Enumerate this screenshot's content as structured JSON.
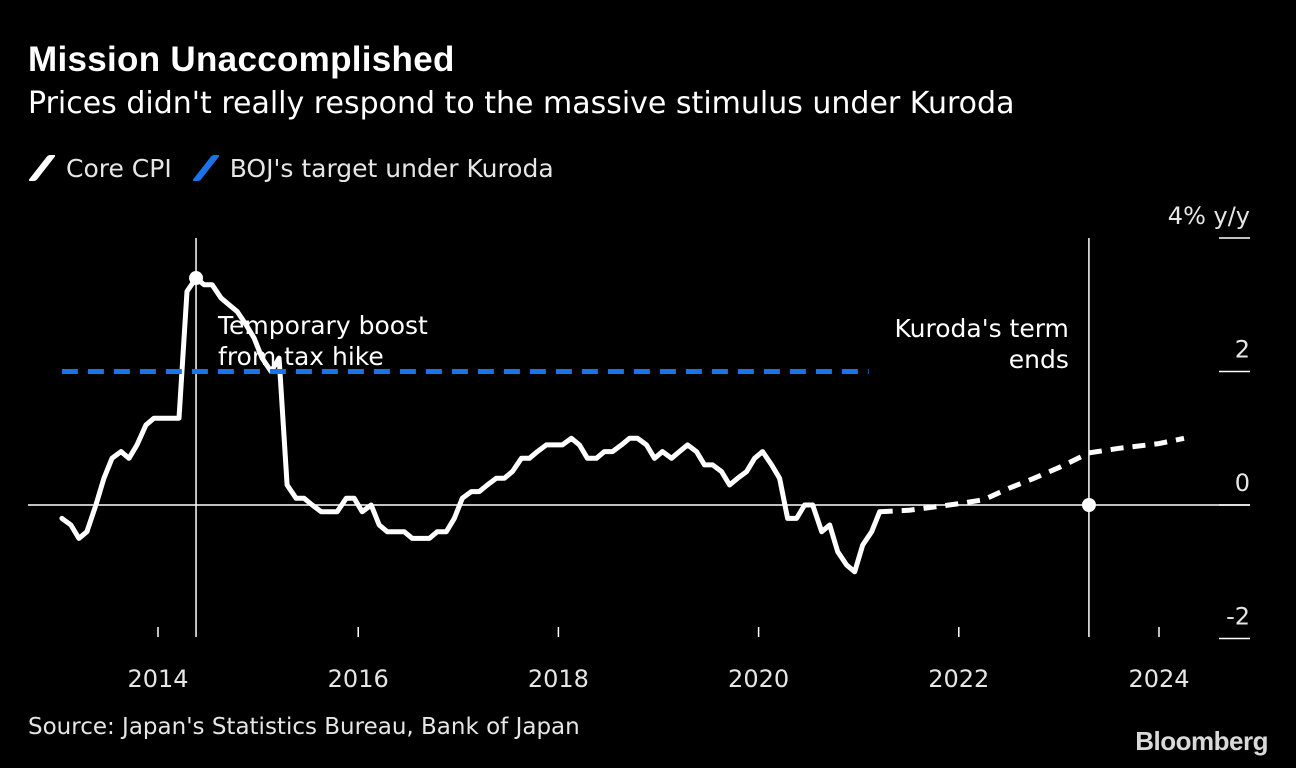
{
  "header": {
    "title": "Mission Unaccomplished",
    "subtitle": "Prices didn't really respond to the massive stimulus under Kuroda"
  },
  "footer": {
    "source": "Source: Japan's Statistics Bureau, Bank of Japan",
    "brand": "Bloomberg"
  },
  "chart_data": {
    "type": "line",
    "y_unit_label": "4% y/y",
    "xlim": [
      2013.0,
      2025.0
    ],
    "ylim": [
      -2,
      4
    ],
    "x_ticks": [
      {
        "value": 2014,
        "label": "2014"
      },
      {
        "value": 2016,
        "label": "2016"
      },
      {
        "value": 2018,
        "label": "2018"
      },
      {
        "value": 2020,
        "label": "2020"
      },
      {
        "value": 2022,
        "label": "2022"
      },
      {
        "value": 2024,
        "label": "2024"
      }
    ],
    "y_ticks": [
      {
        "value": 4,
        "label": ""
      },
      {
        "value": 2,
        "label": "2"
      },
      {
        "value": 0,
        "label": "0"
      },
      {
        "value": -2,
        "label": "-2"
      }
    ],
    "legend": {
      "placement": "top-left",
      "items": [
        {
          "name": "Core CPI",
          "color": "#ffffff"
        },
        {
          "name": "BOJ's target under Kuroda",
          "color": "#1a73e8"
        }
      ]
    },
    "series": [
      {
        "name": "Core CPI",
        "style": "solid",
        "color": "#ffffff",
        "points": [
          [
            2013.04,
            -0.2
          ],
          [
            2013.13,
            -0.3
          ],
          [
            2013.21,
            -0.5
          ],
          [
            2013.29,
            -0.4
          ],
          [
            2013.38,
            0.0
          ],
          [
            2013.46,
            0.4
          ],
          [
            2013.54,
            0.7
          ],
          [
            2013.63,
            0.8
          ],
          [
            2013.71,
            0.7
          ],
          [
            2013.79,
            0.9
          ],
          [
            2013.88,
            1.2
          ],
          [
            2013.96,
            1.3
          ],
          [
            2014.04,
            1.3
          ],
          [
            2014.13,
            1.3
          ],
          [
            2014.21,
            1.3
          ],
          [
            2014.29,
            3.2
          ],
          [
            2014.38,
            3.4
          ],
          [
            2014.46,
            3.3
          ],
          [
            2014.54,
            3.3
          ],
          [
            2014.63,
            3.1
          ],
          [
            2014.71,
            3.0
          ],
          [
            2014.79,
            2.9
          ],
          [
            2014.88,
            2.7
          ],
          [
            2014.96,
            2.5
          ],
          [
            2015.04,
            2.2
          ],
          [
            2015.13,
            2.0
          ],
          [
            2015.21,
            2.2
          ],
          [
            2015.29,
            0.3
          ],
          [
            2015.38,
            0.1
          ],
          [
            2015.46,
            0.1
          ],
          [
            2015.54,
            0.0
          ],
          [
            2015.63,
            -0.1
          ],
          [
            2015.71,
            -0.1
          ],
          [
            2015.79,
            -0.1
          ],
          [
            2015.88,
            0.1
          ],
          [
            2015.96,
            0.1
          ],
          [
            2016.04,
            -0.1
          ],
          [
            2016.13,
            0.0
          ],
          [
            2016.21,
            -0.3
          ],
          [
            2016.29,
            -0.4
          ],
          [
            2016.38,
            -0.4
          ],
          [
            2016.46,
            -0.4
          ],
          [
            2016.54,
            -0.5
          ],
          [
            2016.63,
            -0.5
          ],
          [
            2016.71,
            -0.5
          ],
          [
            2016.79,
            -0.4
          ],
          [
            2016.88,
            -0.4
          ],
          [
            2016.96,
            -0.2
          ],
          [
            2017.04,
            0.1
          ],
          [
            2017.13,
            0.2
          ],
          [
            2017.21,
            0.2
          ],
          [
            2017.29,
            0.3
          ],
          [
            2017.38,
            0.4
          ],
          [
            2017.46,
            0.4
          ],
          [
            2017.54,
            0.5
          ],
          [
            2017.63,
            0.7
          ],
          [
            2017.71,
            0.7
          ],
          [
            2017.79,
            0.8
          ],
          [
            2017.88,
            0.9
          ],
          [
            2017.96,
            0.9
          ],
          [
            2018.04,
            0.9
          ],
          [
            2018.13,
            1.0
          ],
          [
            2018.21,
            0.9
          ],
          [
            2018.29,
            0.7
          ],
          [
            2018.38,
            0.7
          ],
          [
            2018.46,
            0.8
          ],
          [
            2018.54,
            0.8
          ],
          [
            2018.63,
            0.9
          ],
          [
            2018.71,
            1.0
          ],
          [
            2018.79,
            1.0
          ],
          [
            2018.88,
            0.9
          ],
          [
            2018.96,
            0.7
          ],
          [
            2019.04,
            0.8
          ],
          [
            2019.13,
            0.7
          ],
          [
            2019.21,
            0.8
          ],
          [
            2019.29,
            0.9
          ],
          [
            2019.38,
            0.8
          ],
          [
            2019.46,
            0.6
          ],
          [
            2019.54,
            0.6
          ],
          [
            2019.63,
            0.5
          ],
          [
            2019.71,
            0.3
          ],
          [
            2019.79,
            0.4
          ],
          [
            2019.88,
            0.5
          ],
          [
            2019.96,
            0.7
          ],
          [
            2020.04,
            0.8
          ],
          [
            2020.13,
            0.6
          ],
          [
            2020.21,
            0.4
          ],
          [
            2020.29,
            -0.2
          ],
          [
            2020.38,
            -0.2
          ],
          [
            2020.46,
            0.0
          ],
          [
            2020.54,
            0.0
          ],
          [
            2020.63,
            -0.4
          ],
          [
            2020.71,
            -0.3
          ],
          [
            2020.79,
            -0.7
          ],
          [
            2020.88,
            -0.9
          ],
          [
            2020.96,
            -1.0
          ],
          [
            2021.04,
            -0.6
          ],
          [
            2021.13,
            -0.4
          ],
          [
            2021.21,
            -0.1
          ]
        ]
      },
      {
        "name": "Core CPI forecast",
        "style": "dashed",
        "color": "#ffffff",
        "points": [
          [
            2021.21,
            -0.1
          ],
          [
            2021.5,
            -0.08
          ],
          [
            2021.75,
            -0.03
          ],
          [
            2022.0,
            0.02
          ],
          [
            2022.25,
            0.08
          ],
          [
            2022.5,
            0.25
          ],
          [
            2022.75,
            0.4
          ],
          [
            2023.0,
            0.56
          ],
          [
            2023.3,
            0.78
          ],
          [
            2023.6,
            0.85
          ],
          [
            2024.0,
            0.92
          ],
          [
            2024.25,
            1.0
          ]
        ]
      },
      {
        "name": "BOJ's target under Kuroda",
        "style": "dashed",
        "color": "#1a73e8",
        "points": [
          [
            2013.04,
            2.0
          ],
          [
            2021.1,
            2.0
          ]
        ]
      }
    ],
    "annotations": [
      {
        "x": 2014.38,
        "y": 3.4,
        "lines": [
          "Temporary boost",
          "from tax hike"
        ],
        "align": "left",
        "marker": "dot",
        "vline": true
      },
      {
        "x": 2023.3,
        "y": 0.0,
        "lines": [
          "Kuroda's term",
          "ends"
        ],
        "align": "right",
        "marker": "dot",
        "vline": true
      }
    ]
  }
}
